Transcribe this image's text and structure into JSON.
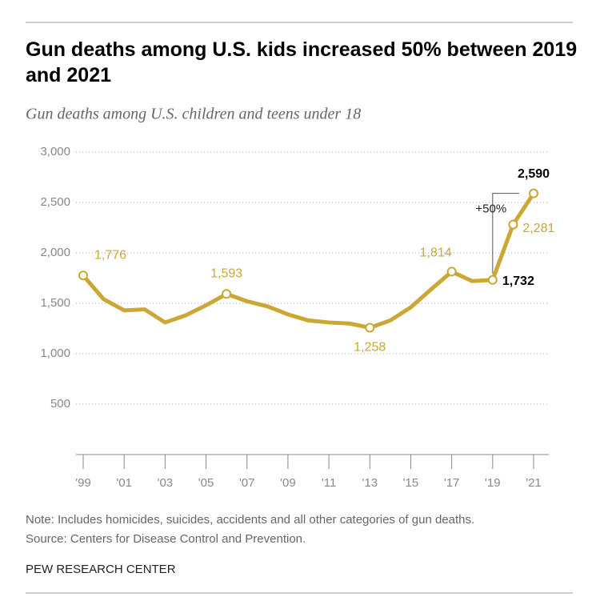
{
  "chart_data": {
    "type": "line",
    "title": "Gun deaths among U.S. kids increased 50% between 2019 and 2021",
    "subtitle": "Gun deaths among U.S. children and teens under 18",
    "x": [
      1999,
      2000,
      2001,
      2002,
      2003,
      2004,
      2005,
      2006,
      2007,
      2008,
      2009,
      2010,
      2011,
      2012,
      2013,
      2014,
      2015,
      2016,
      2017,
      2018,
      2019,
      2020,
      2021
    ],
    "series": [
      {
        "name": "Gun deaths",
        "color": "#cba833",
        "values": [
          1776,
          1540,
          1430,
          1440,
          1310,
          1380,
          1480,
          1593,
          1520,
          1470,
          1390,
          1330,
          1310,
          1300,
          1258,
          1330,
          1460,
          1640,
          1814,
          1720,
          1732,
          2281,
          2590
        ],
        "value_labels": [
          "1,776",
          null,
          null,
          null,
          null,
          null,
          null,
          "1,593",
          null,
          null,
          null,
          null,
          null,
          null,
          "1,258",
          null,
          null,
          null,
          "1,814",
          null,
          "1,732",
          "2,281",
          "2,590"
        ]
      }
    ],
    "annotation": "+50%",
    "xlim": [
      1999,
      2021
    ],
    "xticks": [
      {
        "value": 1999,
        "label": "'99"
      },
      {
        "value": 2001,
        "label": "'01"
      },
      {
        "value": 2003,
        "label": "'03"
      },
      {
        "value": 2005,
        "label": "'05"
      },
      {
        "value": 2007,
        "label": "'07"
      },
      {
        "value": 2009,
        "label": "'09"
      },
      {
        "value": 2011,
        "label": "'11"
      },
      {
        "value": 2013,
        "label": "'13"
      },
      {
        "value": 2015,
        "label": "'15"
      },
      {
        "value": 2017,
        "label": "'17"
      },
      {
        "value": 2019,
        "label": "'19"
      },
      {
        "value": 2021,
        "label": "'21"
      }
    ],
    "ylim": [
      0,
      3000
    ],
    "yticks": [
      500,
      {
        "value": 1000,
        "label": "1,000"
      },
      {
        "value": 1500,
        "label": "1,500"
      },
      {
        "value": 2000,
        "label": "2,000"
      },
      {
        "value": 2500,
        "label": "2,500"
      },
      {
        "value": 3000,
        "label": "3,000"
      }
    ],
    "grid": true,
    "note": "Note: Includes homicides, suicides, accidents and all other categories of gun deaths.",
    "source": "Source: Centers for Disease Control and Prevention.",
    "credit": "PEW RESEARCH CENTER"
  }
}
